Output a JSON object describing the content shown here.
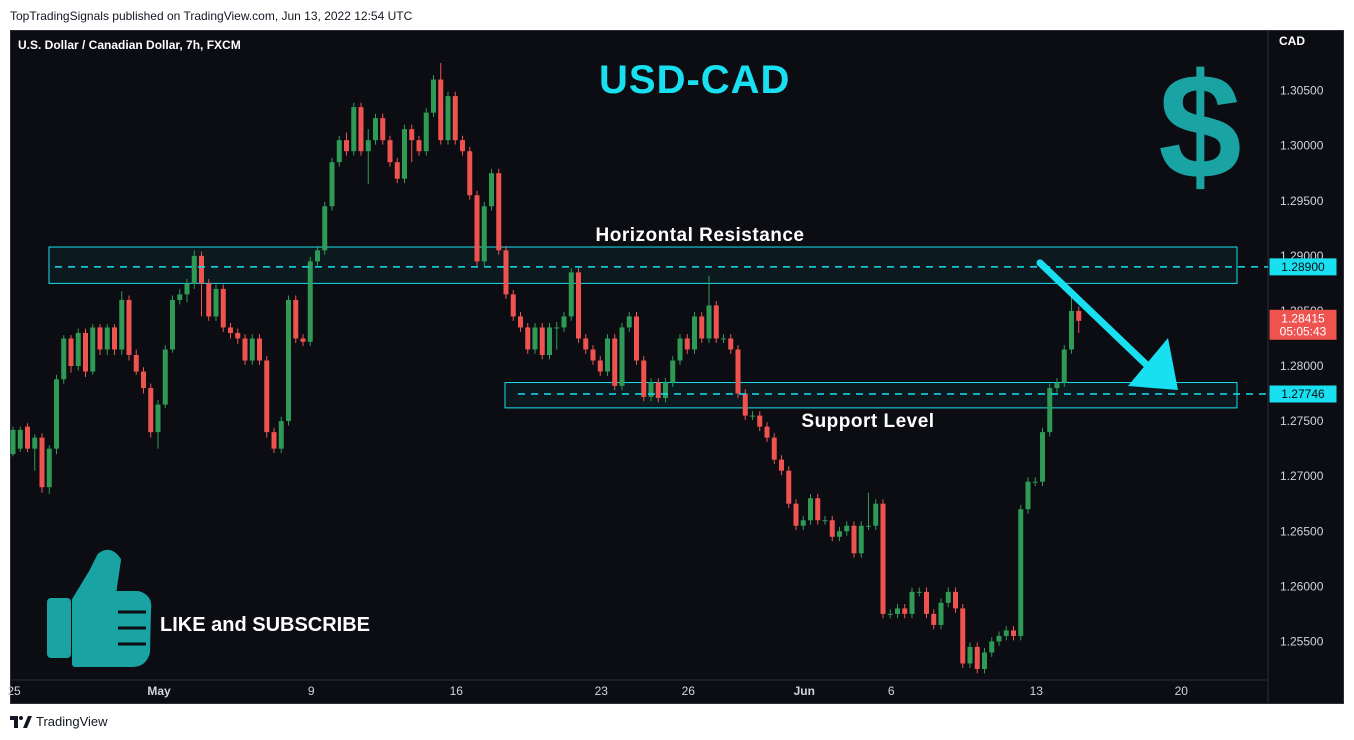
{
  "header": {
    "published": "TopTradingSignals published on TradingView.com, Jun 13, 2022 12:54 UTC"
  },
  "footer": {
    "brand": "TradingView"
  },
  "chart_data": {
    "type": "candlestick",
    "symbol": "U.S. Dollar / Canadian Dollar, 7h, FXCM",
    "title": "USD-CAD",
    "currency": "CAD",
    "ylim": [
      1.2515,
      1.3105
    ],
    "ytick_values": [
      1.255,
      1.26,
      1.265,
      1.27,
      1.275,
      1.28,
      1.285,
      1.29,
      1.295,
      1.3,
      1.305
    ],
    "ytick_labels": [
      "1.25500",
      "1.26000",
      "1.26500",
      "1.27000",
      "1.27500",
      "1.28000",
      "1.28500",
      "1.29000",
      "1.29500",
      "1.30000",
      "1.30500"
    ],
    "xticks": [
      {
        "label": "25",
        "index": 0
      },
      {
        "label": "May",
        "index": 20
      },
      {
        "label": "9",
        "index": 41
      },
      {
        "label": "16",
        "index": 61
      },
      {
        "label": "23",
        "index": 81
      },
      {
        "label": "26",
        "index": 93
      },
      {
        "label": "Jun",
        "index": 109
      },
      {
        "label": "6",
        "index": 121
      },
      {
        "label": "13",
        "index": 141
      },
      {
        "label": "20",
        "index": 161
      }
    ],
    "candles": [
      [
        1.272,
        1.2742,
        1.2718,
        1.2745
      ],
      [
        1.2725,
        1.2742,
        1.2722,
        1.2745
      ],
      [
        1.2745,
        1.2725,
        1.2722,
        1.2748
      ],
      [
        1.2725,
        1.2735,
        1.2705,
        1.2738
      ],
      [
        1.2735,
        1.269,
        1.2685,
        1.2739
      ],
      [
        1.269,
        1.2725,
        1.2684,
        1.2728
      ],
      [
        1.2725,
        1.2788,
        1.272,
        1.2792
      ],
      [
        1.2788,
        1.2825,
        1.2784,
        1.2828
      ],
      [
        1.2825,
        1.28,
        1.2794,
        1.2828
      ],
      [
        1.28,
        1.283,
        1.2796,
        1.2834
      ],
      [
        1.283,
        1.2795,
        1.279,
        1.2834
      ],
      [
        1.2795,
        1.2835,
        1.2792,
        1.2838
      ],
      [
        1.2835,
        1.2815,
        1.281,
        1.2838
      ],
      [
        1.2815,
        1.2835,
        1.281,
        1.2838
      ],
      [
        1.2835,
        1.2815,
        1.281,
        1.2838
      ],
      [
        1.2815,
        1.286,
        1.281,
        1.2868
      ],
      [
        1.286,
        1.281,
        1.2805,
        1.2864
      ],
      [
        1.281,
        1.2795,
        1.2792,
        1.2815
      ],
      [
        1.2795,
        1.278,
        1.2775,
        1.2799
      ],
      [
        1.278,
        1.274,
        1.2735,
        1.2784
      ],
      [
        1.274,
        1.2765,
        1.2725,
        1.2769
      ],
      [
        1.2765,
        1.2815,
        1.2762,
        1.2819
      ],
      [
        1.2815,
        1.286,
        1.2812,
        1.2864
      ],
      [
        1.286,
        1.2865,
        1.2856,
        1.287
      ],
      [
        1.2865,
        1.2875,
        1.2858,
        1.2879
      ],
      [
        1.2875,
        1.29,
        1.287,
        1.2905
      ],
      [
        1.29,
        1.2875,
        1.2845,
        1.2904
      ],
      [
        1.2875,
        1.2845,
        1.2841,
        1.2879
      ],
      [
        1.2845,
        1.287,
        1.2841,
        1.2874
      ],
      [
        1.287,
        1.2835,
        1.2831,
        1.2874
      ],
      [
        1.2835,
        1.283,
        1.2825,
        1.2839
      ],
      [
        1.283,
        1.2825,
        1.282,
        1.2834
      ],
      [
        1.2825,
        1.2805,
        1.2801,
        1.2829
      ],
      [
        1.2805,
        1.2825,
        1.2801,
        1.2829
      ],
      [
        1.2825,
        1.2805,
        1.2801,
        1.2829
      ],
      [
        1.2805,
        1.274,
        1.2735,
        1.2809
      ],
      [
        1.274,
        1.2725,
        1.2721,
        1.2744
      ],
      [
        1.2725,
        1.275,
        1.2721,
        1.2754
      ],
      [
        1.275,
        1.286,
        1.2746,
        1.2864
      ],
      [
        1.286,
        1.2825,
        1.2821,
        1.2864
      ],
      [
        1.2825,
        1.2822,
        1.2818,
        1.2829
      ],
      [
        1.2822,
        1.2895,
        1.2818,
        1.2899
      ],
      [
        1.2895,
        1.2905,
        1.2891,
        1.2909
      ],
      [
        1.2905,
        1.2945,
        1.2901,
        1.2949
      ],
      [
        1.2945,
        1.2985,
        1.2941,
        1.2989
      ],
      [
        1.2985,
        1.3005,
        1.2981,
        1.3009
      ],
      [
        1.3005,
        1.2995,
        1.2991,
        1.3012
      ],
      [
        1.2995,
        1.3035,
        1.2991,
        1.3039
      ],
      [
        1.3035,
        1.2995,
        1.2991,
        1.3039
      ],
      [
        1.2995,
        1.3005,
        1.2965,
        1.3015
      ],
      [
        1.3005,
        1.3025,
        1.3001,
        1.3029
      ],
      [
        1.3025,
        1.3005,
        1.3001,
        1.3029
      ],
      [
        1.3005,
        1.2985,
        1.2981,
        1.3009
      ],
      [
        1.2985,
        1.297,
        1.2966,
        1.2989
      ],
      [
        1.297,
        1.3015,
        1.2966,
        1.3019
      ],
      [
        1.3015,
        1.3005,
        1.2985,
        1.3019
      ],
      [
        1.3005,
        1.2995,
        1.2991,
        1.3009
      ],
      [
        1.2995,
        1.303,
        1.2991,
        1.3034
      ],
      [
        1.303,
        1.306,
        1.3026,
        1.3064
      ],
      [
        1.306,
        1.3005,
        1.3001,
        1.3075
      ],
      [
        1.3005,
        1.3045,
        1.3001,
        1.3049
      ],
      [
        1.3045,
        1.3005,
        1.3001,
        1.3049
      ],
      [
        1.3005,
        1.2995,
        1.2991,
        1.3009
      ],
      [
        1.2995,
        1.2955,
        1.2951,
        1.2999
      ],
      [
        1.2955,
        1.2895,
        1.2891,
        1.2959
      ],
      [
        1.2895,
        1.2945,
        1.2891,
        1.2949
      ],
      [
        1.2945,
        1.2975,
        1.2941,
        1.2979
      ],
      [
        1.2975,
        1.2905,
        1.2901,
        1.2979
      ],
      [
        1.2905,
        1.2865,
        1.2861,
        1.2909
      ],
      [
        1.2865,
        1.2845,
        1.2841,
        1.2869
      ],
      [
        1.2845,
        1.2835,
        1.2831,
        1.2849
      ],
      [
        1.2835,
        1.2815,
        1.2811,
        1.2839
      ],
      [
        1.2815,
        1.2835,
        1.2811,
        1.2839
      ],
      [
        1.2835,
        1.281,
        1.2806,
        1.2839
      ],
      [
        1.281,
        1.2835,
        1.2806,
        1.2839
      ],
      [
        1.2835,
        1.2835,
        1.2815,
        1.284
      ],
      [
        1.2835,
        1.2845,
        1.2831,
        1.2849
      ],
      [
        1.2845,
        1.2885,
        1.2841,
        1.2889
      ],
      [
        1.2885,
        1.2825,
        1.2821,
        1.2889
      ],
      [
        1.2825,
        1.2815,
        1.2811,
        1.2829
      ],
      [
        1.2815,
        1.2805,
        1.2801,
        1.2819
      ],
      [
        1.2805,
        1.2795,
        1.2791,
        1.2809
      ],
      [
        1.2795,
        1.2825,
        1.2791,
        1.2829
      ],
      [
        1.2825,
        1.2782,
        1.2778,
        1.2829
      ],
      [
        1.2782,
        1.2835,
        1.2778,
        1.2839
      ],
      [
        1.2835,
        1.2845,
        1.2831,
        1.2849
      ],
      [
        1.2845,
        1.2805,
        1.2801,
        1.2849
      ],
      [
        1.2805,
        1.2772,
        1.2768,
        1.2809
      ],
      [
        1.2772,
        1.2785,
        1.2768,
        1.2789
      ],
      [
        1.2785,
        1.2771,
        1.2767,
        1.2789
      ],
      [
        1.2771,
        1.2785,
        1.2767,
        1.2789
      ],
      [
        1.2785,
        1.2805,
        1.2781,
        1.2809
      ],
      [
        1.2805,
        1.2825,
        1.2801,
        1.2829
      ],
      [
        1.2825,
        1.2815,
        1.2811,
        1.2829
      ],
      [
        1.2815,
        1.2845,
        1.2811,
        1.2849
      ],
      [
        1.2845,
        1.2825,
        1.2821,
        1.2849
      ],
      [
        1.2825,
        1.2855,
        1.2821,
        1.2882
      ],
      [
        1.2855,
        1.2825,
        1.2821,
        1.2859
      ],
      [
        1.2825,
        1.2825,
        1.2821,
        1.2829
      ],
      [
        1.2825,
        1.2815,
        1.2811,
        1.2829
      ],
      [
        1.2815,
        1.2775,
        1.2771,
        1.2819
      ],
      [
        1.2775,
        1.2755,
        1.2751,
        1.2779
      ],
      [
        1.2755,
        1.2755,
        1.2751,
        1.2759
      ],
      [
        1.2755,
        1.2745,
        1.2741,
        1.2759
      ],
      [
        1.2745,
        1.2735,
        1.2731,
        1.2749
      ],
      [
        1.2735,
        1.2715,
        1.2711,
        1.2739
      ],
      [
        1.2715,
        1.2705,
        1.2701,
        1.2719
      ],
      [
        1.2705,
        1.2675,
        1.2671,
        1.2709
      ],
      [
        1.2675,
        1.2655,
        1.2651,
        1.2679
      ],
      [
        1.2655,
        1.266,
        1.2651,
        1.2664
      ],
      [
        1.266,
        1.268,
        1.2656,
        1.2684
      ],
      [
        1.268,
        1.266,
        1.2656,
        1.2684
      ],
      [
        1.266,
        1.266,
        1.2656,
        1.2664
      ],
      [
        1.266,
        1.2645,
        1.2641,
        1.2664
      ],
      [
        1.2645,
        1.265,
        1.2641,
        1.2654
      ],
      [
        1.265,
        1.2655,
        1.2646,
        1.2659
      ],
      [
        1.2655,
        1.263,
        1.2626,
        1.2659
      ],
      [
        1.263,
        1.2655,
        1.2626,
        1.2659
      ],
      [
        1.2655,
        1.2655,
        1.2651,
        1.2685
      ],
      [
        1.2655,
        1.2675,
        1.2651,
        1.2679
      ],
      [
        1.2675,
        1.2575,
        1.2571,
        1.2679
      ],
      [
        1.2575,
        1.2575,
        1.2571,
        1.2579
      ],
      [
        1.2575,
        1.258,
        1.2571,
        1.2584
      ],
      [
        1.258,
        1.2575,
        1.2571,
        1.2584
      ],
      [
        1.2575,
        1.2595,
        1.2571,
        1.2599
      ],
      [
        1.2595,
        1.2595,
        1.2591,
        1.2599
      ],
      [
        1.2595,
        1.2575,
        1.2571,
        1.2599
      ],
      [
        1.2575,
        1.2565,
        1.2561,
        1.2579
      ],
      [
        1.2565,
        1.2585,
        1.2561,
        1.2589
      ],
      [
        1.2585,
        1.2595,
        1.2581,
        1.2599
      ],
      [
        1.2595,
        1.258,
        1.2576,
        1.2599
      ],
      [
        1.258,
        1.253,
        1.2526,
        1.2584
      ],
      [
        1.253,
        1.2545,
        1.2526,
        1.2549
      ],
      [
        1.2545,
        1.2525,
        1.2521,
        1.2549
      ],
      [
        1.2525,
        1.254,
        1.2521,
        1.2544
      ],
      [
        1.254,
        1.255,
        1.2536,
        1.2554
      ],
      [
        1.255,
        1.2555,
        1.2546,
        1.2559
      ],
      [
        1.2555,
        1.256,
        1.2551,
        1.2564
      ],
      [
        1.256,
        1.2555,
        1.2551,
        1.2564
      ],
      [
        1.2555,
        1.267,
        1.2551,
        1.2674
      ],
      [
        1.267,
        1.2695,
        1.2666,
        1.2699
      ],
      [
        1.2695,
        1.2695,
        1.2691,
        1.2699
      ],
      [
        1.2695,
        1.274,
        1.2691,
        1.2744
      ],
      [
        1.274,
        1.278,
        1.2736,
        1.2784
      ],
      [
        1.278,
        1.2785,
        1.2776,
        1.2789
      ],
      [
        1.2785,
        1.2815,
        1.2781,
        1.2819
      ],
      [
        1.2815,
        1.285,
        1.2811,
        1.2864
      ],
      [
        1.285,
        1.2841,
        1.283,
        1.2854
      ]
    ],
    "annotations": {
      "resistance_zone": {
        "low": 1.2875,
        "high": 1.2908
      },
      "resistance_line": {
        "value": 1.289,
        "label": "1.28900"
      },
      "resistance_text": "Horizontal Resistance",
      "support_zone": {
        "low": 1.2762,
        "high": 1.2785
      },
      "support_line": {
        "value": 1.27746,
        "label": "1.27746"
      },
      "support_text": "Support Level",
      "last_price": {
        "value": 1.28415,
        "label": "1.28415",
        "countdown": "05:05:43"
      },
      "cta_text": "LIKE and SUBSCRIBE"
    },
    "colors": {
      "up": "#26a69a",
      "up_body": "#2e9a55",
      "down": "#ef5350",
      "accent": "#19e0f0",
      "logo": "#1aa3a3",
      "background": "#0c0d12",
      "axis_text": "#d1d4dc"
    }
  }
}
